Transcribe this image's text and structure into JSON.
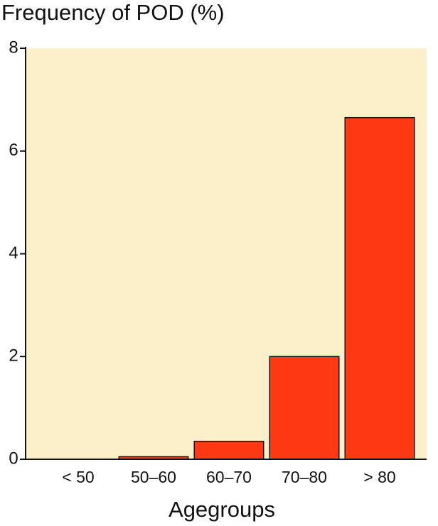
{
  "chart_data": {
    "type": "bar",
    "title": "Frequency of  POD (%)",
    "x_label": "Agegroups",
    "categories": [
      "< 50",
      "50–60",
      "60–70",
      "70–80",
      "> 80"
    ],
    "values": [
      0,
      0.05,
      0.35,
      2.0,
      6.65
    ],
    "color": "#ff3a12",
    "background": "#fbf0c9",
    "ylim": [
      0,
      8
    ],
    "yticks": [
      0,
      2,
      4,
      6,
      8
    ],
    "grid": false
  }
}
